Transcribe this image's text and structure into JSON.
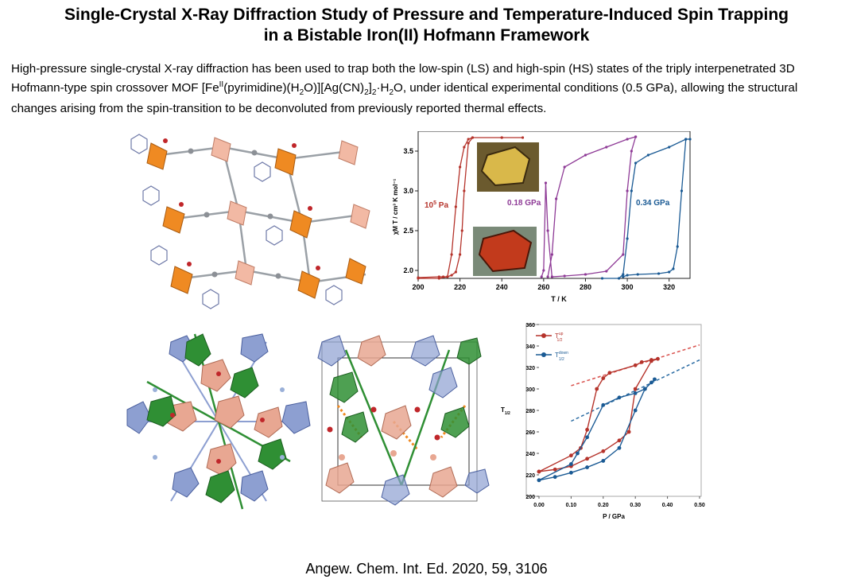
{
  "title": {
    "line1": "Single-Crystal X-Ray Diffraction Study of Pressure and Temperature-Induced Spin Trapping",
    "line2": "in a Bistable Iron(II) Hofmann Framework"
  },
  "abstract": {
    "part1": "High-pressure single-crystal X-ray diffraction has been used to trap both the low-spin (LS) and high-spin (HS) states of the triply interpenetrated 3D Hofmann-type spin crossover MOF [Fe",
    "fe_sup": "II",
    "part2": "(pyrimidine)(H",
    "sub1": "2",
    "part3": "O)][Ag(CN)",
    "sub2": "2",
    "part4": "]",
    "sub3": "2",
    "part5": "·H",
    "sub4": "2",
    "part6": "O, under identical experimental conditions (0.5 GPa), allowing the structural changes arising from the spin-transition to be deconvoluted from previously reported thermal effects."
  },
  "citation": "Angew. Chem. Int. Ed. 2020, 59, 3106",
  "colors": {
    "red": "#b5332b",
    "purple": "#8e3a96",
    "blue": "#1a5a94",
    "orange": "#ef8a22",
    "peach": "#e8a792",
    "green": "#2f8f34",
    "lavender": "#8d9fd1"
  },
  "images": {
    "structure_top": "orange-polyhedra-framework",
    "structure_bottom_left": "green-peach-lavender-interpenetrated-framework",
    "structure_bottom_mid": "unit-cell-packing-view",
    "crystal_photo_top": "yellow-crystal-photo",
    "crystal_photo_bottom": "red-crystal-photo"
  },
  "chart_data": [
    {
      "type": "line",
      "xlabel": "T / K",
      "ylabel": "χM T / cm³ K mol⁻¹",
      "xticks": [
        "200",
        "220",
        "240",
        "260",
        "280",
        "300",
        "320"
      ],
      "yticks": [
        "2.0",
        "2.5",
        "3.0",
        "3.5"
      ],
      "xlim": [
        200,
        330
      ],
      "ylim": [
        1.9,
        3.75
      ],
      "annotations": [
        {
          "text_main": "10",
          "text_sup": "5",
          "text_tail": " Pa",
          "color": "#b5332b"
        },
        {
          "text_main": "0.18 GPa",
          "color": "#8e3a96"
        },
        {
          "text_main": "0.34 GPa",
          "color": "#1a5a94"
        }
      ],
      "series": [
        {
          "color": "#b5332b",
          "x": [
            200,
            210,
            214,
            216,
            218,
            220,
            222,
            224,
            226,
            240,
            250,
            240,
            226,
            224,
            222,
            221,
            220,
            218,
            216,
            214,
            212,
            210,
            200
          ],
          "y": [
            1.9,
            1.9,
            1.92,
            2.2,
            2.8,
            3.3,
            3.55,
            3.65,
            3.67,
            3.67,
            3.67,
            3.67,
            3.67,
            3.6,
            3.0,
            2.5,
            2.2,
            1.98,
            1.94,
            1.92,
            1.92,
            1.92,
            1.91
          ]
        },
        {
          "color": "#8e3a96",
          "x": [
            262,
            264,
            266,
            270,
            280,
            290,
            300,
            304,
            304,
            302,
            300,
            298,
            290,
            280,
            270,
            264,
            262,
            261,
            260,
            259
          ],
          "y": [
            1.92,
            2.2,
            2.9,
            3.3,
            3.45,
            3.55,
            3.65,
            3.68,
            3.68,
            3.5,
            3.0,
            2.2,
            1.99,
            1.95,
            1.93,
            1.92,
            2.5,
            3.1,
            2.0,
            1.92
          ]
        },
        {
          "color": "#1a5a94",
          "x": [
            288,
            296,
            298,
            300,
            302,
            304,
            310,
            320,
            328,
            330,
            328,
            326,
            324,
            322,
            320,
            315,
            305,
            300,
            298
          ],
          "y": [
            1.9,
            1.9,
            1.95,
            2.4,
            3.0,
            3.35,
            3.45,
            3.55,
            3.65,
            3.65,
            3.65,
            3.0,
            2.3,
            2.02,
            1.98,
            1.96,
            1.95,
            1.94,
            1.92
          ]
        }
      ]
    },
    {
      "type": "line",
      "xlabel": "P / GPa",
      "ylabel": "T",
      "ylabel_sub": "1/2",
      "xticks": [
        "0.00",
        "0.10",
        "0.20",
        "0.30",
        "0.40",
        "0.50"
      ],
      "yticks": [
        "200",
        "220",
        "240",
        "260",
        "280",
        "300",
        "320",
        "340",
        "360"
      ],
      "xlim": [
        0,
        0.5
      ],
      "ylim": [
        200,
        360
      ],
      "legend": [
        {
          "label": "T",
          "sup": "up",
          "sub": "1/2",
          "color": "#b5332b"
        },
        {
          "label": "T",
          "sup": "down",
          "sub": "1/2",
          "color": "#1a5a94"
        }
      ],
      "legend_position": "top-left",
      "series": [
        {
          "name": "T1/2 up",
          "color": "#b5332b",
          "x": [
            0.0,
            0.1,
            0.13,
            0.15,
            0.18,
            0.2,
            0.22,
            0.3,
            0.32,
            0.35,
            0.37,
            0.35,
            0.3,
            0.28,
            0.25,
            0.2,
            0.15,
            0.1,
            0.05,
            0.0
          ],
          "y": [
            223,
            238,
            245,
            262,
            300,
            310,
            315,
            322,
            325,
            327,
            328,
            326,
            300,
            260,
            252,
            242,
            235,
            228,
            225,
            223
          ]
        },
        {
          "name": "T1/2 down",
          "color": "#1a5a94",
          "x": [
            0.0,
            0.1,
            0.12,
            0.15,
            0.2,
            0.25,
            0.3,
            0.33,
            0.36,
            0.35,
            0.33,
            0.3,
            0.25,
            0.2,
            0.15,
            0.1,
            0.05,
            0.0
          ],
          "y": [
            215,
            230,
            240,
            255,
            285,
            292,
            296,
            300,
            309,
            306,
            300,
            280,
            245,
            233,
            227,
            222,
            218,
            215
          ]
        }
      ],
      "fits": [
        {
          "color": "#d9534f",
          "x": [
            0.1,
            0.5
          ],
          "y": [
            303,
            341
          ]
        },
        {
          "color": "#2b6ca3",
          "x": [
            0.1,
            0.5
          ],
          "y": [
            270,
            327
          ]
        }
      ]
    }
  ]
}
